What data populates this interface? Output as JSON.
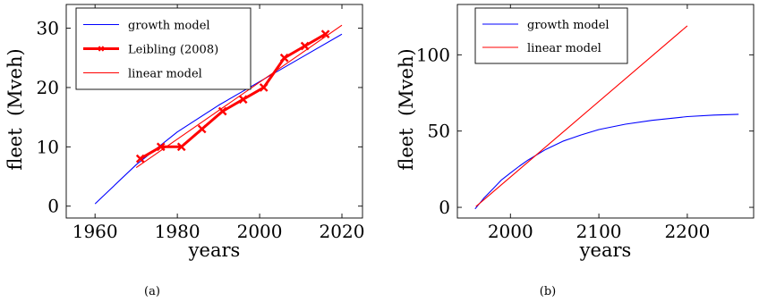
{
  "colors": {
    "blue": "#0000ff",
    "red": "#ff0000",
    "axis": "#000000",
    "legend_blue_text": "#3333cc"
  },
  "chart_data": [
    {
      "type": "line",
      "caption": "(a)",
      "xlabel": "years",
      "ylabel": "fleet  (Mveh)",
      "xlim": [
        1953,
        2025
      ],
      "ylim": [
        -2,
        34
      ],
      "xticks": [
        1960,
        1980,
        2000,
        2020
      ],
      "yticks": [
        0,
        10,
        20,
        30
      ],
      "grid": false,
      "legend": {
        "placement": "top-left"
      },
      "series": [
        {
          "name": "growth model",
          "color": "blue",
          "style": "thin",
          "x": [
            1960,
            1970,
            1980,
            1990,
            2000,
            2010,
            2020
          ],
          "y": [
            0.4,
            7.0,
            12.5,
            17.0,
            21.0,
            25.0,
            29.0
          ]
        },
        {
          "name": "Leibling (2008)",
          "color": "red",
          "style": "thick-markers",
          "x": [
            1971,
            1976,
            1981,
            1986,
            1991,
            1996,
            2001,
            2006,
            2011,
            2016
          ],
          "y": [
            8,
            10,
            10,
            13,
            16,
            18,
            20,
            25,
            27,
            29
          ]
        },
        {
          "name": "linear model",
          "color": "red",
          "style": "thin",
          "x": [
            1970,
            2020
          ],
          "y": [
            6.5,
            30.5
          ]
        }
      ]
    },
    {
      "type": "line",
      "caption": "(b)",
      "xlabel": "years",
      "ylabel": "fleet  (Mveh)",
      "xlim": [
        1940,
        2275
      ],
      "ylim": [
        -7,
        133
      ],
      "xticks": [
        2000,
        2100,
        2200
      ],
      "yticks": [
        0,
        50,
        100
      ],
      "grid": false,
      "legend": {
        "placement": "top-left"
      },
      "series": [
        {
          "name": "growth model",
          "color": "blue",
          "style": "thin",
          "x": [
            1960,
            1970,
            1980,
            1990,
            2000,
            2010,
            2020,
            2040,
            2060,
            2080,
            2100,
            2130,
            2160,
            2200,
            2230,
            2258
          ],
          "y": [
            -1,
            6,
            12,
            18,
            22.5,
            27,
            31,
            38,
            43.5,
            47.5,
            51,
            54.5,
            57,
            59.5,
            60.5,
            61
          ]
        },
        {
          "name": "linear model",
          "color": "red",
          "style": "thin",
          "x": [
            1961,
            2200
          ],
          "y": [
            0.5,
            119
          ]
        }
      ]
    }
  ]
}
